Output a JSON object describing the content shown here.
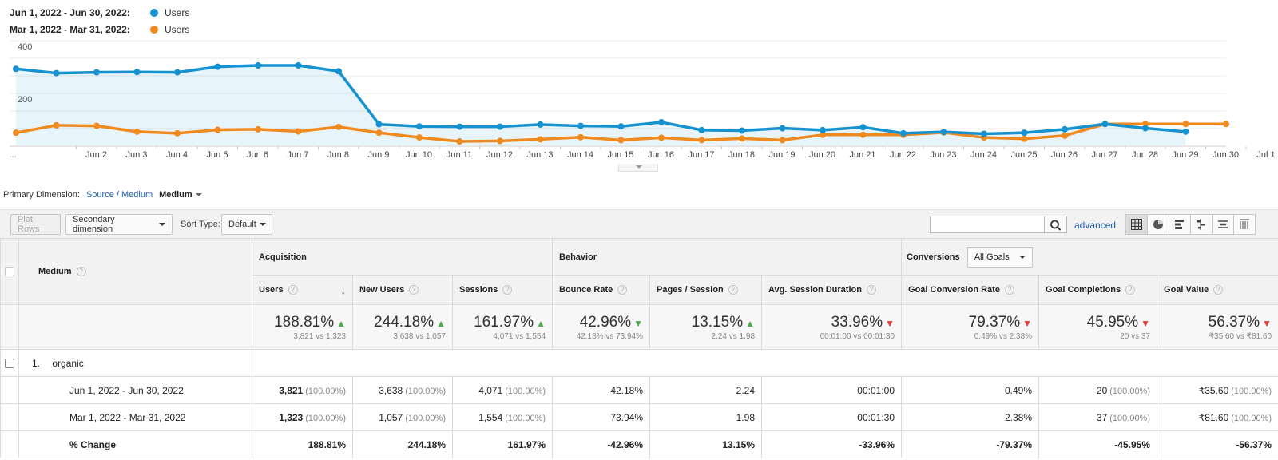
{
  "legend": [
    {
      "range": "Jun 1, 2022 - Jun 30, 2022:",
      "metric": "Users",
      "color": "#1592cf"
    },
    {
      "range": "Mar 1, 2022 - Mar 31, 2022:",
      "metric": "Users",
      "color": "#ef8a1f"
    }
  ],
  "chart_data": {
    "type": "line",
    "y_ticks": [
      "400",
      "200"
    ],
    "ylim": [
      0,
      400
    ],
    "x_labels": [
      "...",
      "Jun 2",
      "Jun 3",
      "Jun 4",
      "Jun 5",
      "Jun 6",
      "Jun 7",
      "Jun 8",
      "Jun 9",
      "Jun 10",
      "Jun 11",
      "Jun 12",
      "Jun 13",
      "Jun 14",
      "Jun 15",
      "Jun 16",
      "Jun 17",
      "Jun 18",
      "Jun 19",
      "Jun 20",
      "Jun 21",
      "Jun 22",
      "Jun 23",
      "Jun 24",
      "Jun 25",
      "Jun 26",
      "Jun 27",
      "Jun 28",
      "Jun 29",
      "Jun 30",
      "Jul 1"
    ],
    "series": [
      {
        "name": "Jun 1, 2022 - Jun 30, 2022: Users",
        "color": "#1592cf",
        "fill": true,
        "values": [
          290,
          274,
          277,
          278,
          277,
          298,
          303,
          303,
          281,
          80,
          72,
          71,
          71,
          79,
          74,
          72,
          88,
          58,
          56,
          65,
          58,
          69,
          46,
          51,
          44,
          48,
          61,
          81,
          65,
          52
        ]
      },
      {
        "name": "Mar 1, 2022 - Mar 31, 2022: Users",
        "color": "#ef8a1f",
        "fill": false,
        "values": [
          48,
          76,
          74,
          52,
          46,
          59,
          61,
          53,
          70,
          48,
          30,
          15,
          17,
          23,
          31,
          20,
          29,
          20,
          26,
          20,
          40,
          40,
          40,
          49,
          30,
          25,
          37,
          81,
          81,
          81,
          81
        ]
      }
    ]
  },
  "primary_dimension": {
    "label": "Primary Dimension:",
    "link": "Source / Medium",
    "active": "Medium"
  },
  "toolbar": {
    "plot_rows": "Plot Rows",
    "secondary_dimension": "Secondary dimension",
    "sort_type_label": "Sort Type:",
    "sort_type_value": "Default",
    "search_value": "",
    "advanced": "advanced"
  },
  "table": {
    "dimension_header": "Medium",
    "groups": {
      "acquisition": "Acquisition",
      "behavior": "Behavior",
      "conversions": "Conversions",
      "goals_select": "All Goals"
    },
    "columns": [
      "Users",
      "New Users",
      "Sessions",
      "Bounce Rate",
      "Pages / Session",
      "Avg. Session Duration",
      "Goal Conversion Rate",
      "Goal Completions",
      "Goal Value"
    ],
    "summary": [
      {
        "main": "188.81%",
        "sub": "3,821 vs 1,323",
        "dir": "up"
      },
      {
        "main": "244.18%",
        "sub": "3,638 vs 1,057",
        "dir": "up"
      },
      {
        "main": "161.97%",
        "sub": "4,071 vs 1,554",
        "dir": "up"
      },
      {
        "main": "42.96%",
        "sub": "42.18% vs 73.94%",
        "dir": "down-good"
      },
      {
        "main": "13.15%",
        "sub": "2.24 vs 1.98",
        "dir": "up"
      },
      {
        "main": "33.96%",
        "sub": "00:01:00 vs 00:01:30",
        "dir": "down"
      },
      {
        "main": "79.37%",
        "sub": "0.49% vs 2.38%",
        "dir": "down"
      },
      {
        "main": "45.95%",
        "sub": "20 vs 37",
        "dir": "down"
      },
      {
        "main": "56.37%",
        "sub": "₹35.60 vs ₹81.60",
        "dir": "down"
      }
    ],
    "row": {
      "index": "1.",
      "name": "organic"
    },
    "sub_rows": [
      {
        "label": "Jun 1, 2022 - Jun 30, 2022",
        "bold_first": true,
        "cells": [
          [
            "3,821",
            "(100.00%)"
          ],
          [
            "3,638",
            "(100.00%)"
          ],
          [
            "4,071",
            "(100.00%)"
          ],
          [
            "42.18%",
            ""
          ],
          [
            "2.24",
            ""
          ],
          [
            "00:01:00",
            ""
          ],
          [
            "0.49%",
            ""
          ],
          [
            "20",
            "(100.00%)"
          ],
          [
            "₹35.60",
            "(100.00%)"
          ]
        ]
      },
      {
        "label": "Mar 1, 2022 - Mar 31, 2022",
        "bold_first": true,
        "cells": [
          [
            "1,323",
            "(100.00%)"
          ],
          [
            "1,057",
            "(100.00%)"
          ],
          [
            "1,554",
            "(100.00%)"
          ],
          [
            "73.94%",
            ""
          ],
          [
            "1.98",
            ""
          ],
          [
            "00:01:30",
            ""
          ],
          [
            "2.38%",
            ""
          ],
          [
            "37",
            "(100.00%)"
          ],
          [
            "₹81.60",
            "(100.00%)"
          ]
        ]
      },
      {
        "label": "% Change",
        "bold_all": true,
        "cells": [
          [
            "188.81%",
            ""
          ],
          [
            "244.18%",
            ""
          ],
          [
            "161.97%",
            ""
          ],
          [
            "-42.96%",
            ""
          ],
          [
            "13.15%",
            ""
          ],
          [
            "-33.96%",
            ""
          ],
          [
            "-79.37%",
            ""
          ],
          [
            "-45.95%",
            ""
          ],
          [
            "-56.37%",
            ""
          ]
        ]
      }
    ]
  }
}
